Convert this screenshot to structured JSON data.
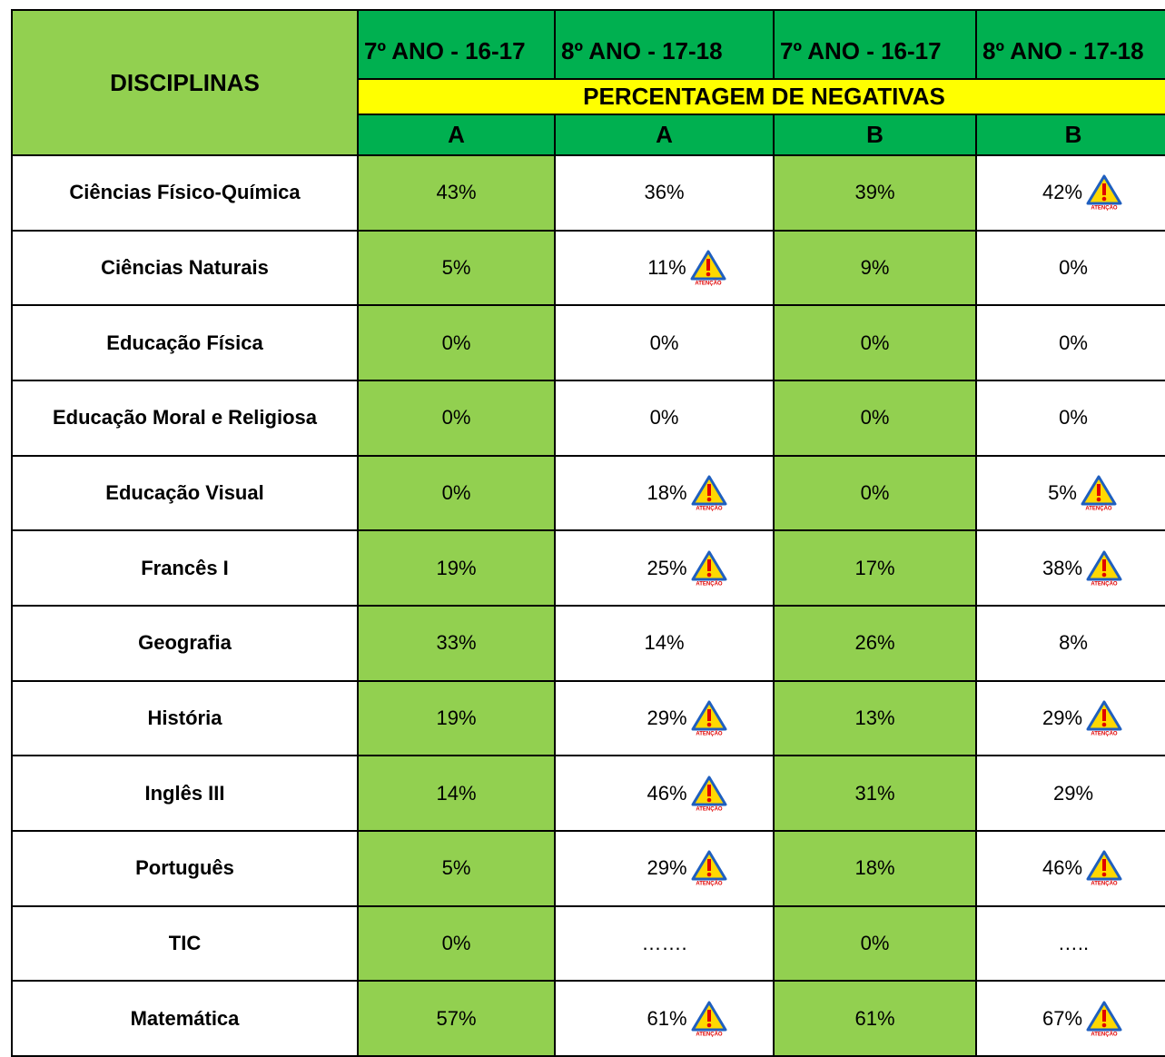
{
  "table": {
    "corner": "DISCIPLINAS",
    "years": [
      "7º ANO - 16-17",
      "8º ANO - 17-18",
      "7º ANO - 16-17",
      "8º ANO - 17-18"
    ],
    "band": "PERCENTAGEM DE NEGATIVAS",
    "classes": [
      "A",
      "A",
      "B",
      "B"
    ],
    "alert_label": "ATENÇÃO",
    "rows": [
      {
        "subject": "Ciências Físico-Química",
        "cells": [
          {
            "text": "43%"
          },
          {
            "text": "36%"
          },
          {
            "text": "39%"
          },
          {
            "text": "42%",
            "alert": true
          }
        ]
      },
      {
        "subject": "Ciências Naturais",
        "cells": [
          {
            "text": "5%"
          },
          {
            "text": "11%",
            "alert": true
          },
          {
            "text": "9%"
          },
          {
            "text": "0%"
          }
        ]
      },
      {
        "subject": "Educação Física",
        "cells": [
          {
            "text": "0%"
          },
          {
            "text": "0%"
          },
          {
            "text": "0%"
          },
          {
            "text": "0%"
          }
        ]
      },
      {
        "subject": "Educação Moral e Religiosa",
        "cells": [
          {
            "text": "0%"
          },
          {
            "text": "0%"
          },
          {
            "text": "0%"
          },
          {
            "text": "0%"
          }
        ]
      },
      {
        "subject": "Educação Visual",
        "cells": [
          {
            "text": "0%"
          },
          {
            "text": "18%",
            "alert": true
          },
          {
            "text": "0%"
          },
          {
            "text": "5%",
            "alert": true
          }
        ]
      },
      {
        "subject": "Francês I",
        "cells": [
          {
            "text": "19%"
          },
          {
            "text": "25%",
            "alert": true
          },
          {
            "text": "17%"
          },
          {
            "text": "38%",
            "alert": true
          }
        ]
      },
      {
        "subject": "Geografia",
        "cells": [
          {
            "text": "33%"
          },
          {
            "text": "14%"
          },
          {
            "text": "26%"
          },
          {
            "text": "8%"
          }
        ]
      },
      {
        "subject": "História",
        "cells": [
          {
            "text": "19%"
          },
          {
            "text": "29%",
            "alert": true
          },
          {
            "text": "13%"
          },
          {
            "text": "29%",
            "alert": true
          }
        ]
      },
      {
        "subject": "Inglês III",
        "cells": [
          {
            "text": "14%"
          },
          {
            "text": "46%",
            "alert": true
          },
          {
            "text": "31%"
          },
          {
            "text": "29%"
          }
        ]
      },
      {
        "subject": "Português",
        "cells": [
          {
            "text": "5%"
          },
          {
            "text": "29%",
            "alert": true
          },
          {
            "text": "18%"
          },
          {
            "text": "46%",
            "alert": true
          }
        ]
      },
      {
        "subject": "TIC",
        "cells": [
          {
            "text": "0%"
          },
          {
            "text": "……."
          },
          {
            "text": "0%"
          },
          {
            "text": "….."
          }
        ]
      },
      {
        "subject": "Matemática",
        "cells": [
          {
            "text": "57%"
          },
          {
            "text": "61%",
            "alert": true
          },
          {
            "text": "61%"
          },
          {
            "text": "67%",
            "alert": true
          }
        ]
      }
    ]
  }
}
